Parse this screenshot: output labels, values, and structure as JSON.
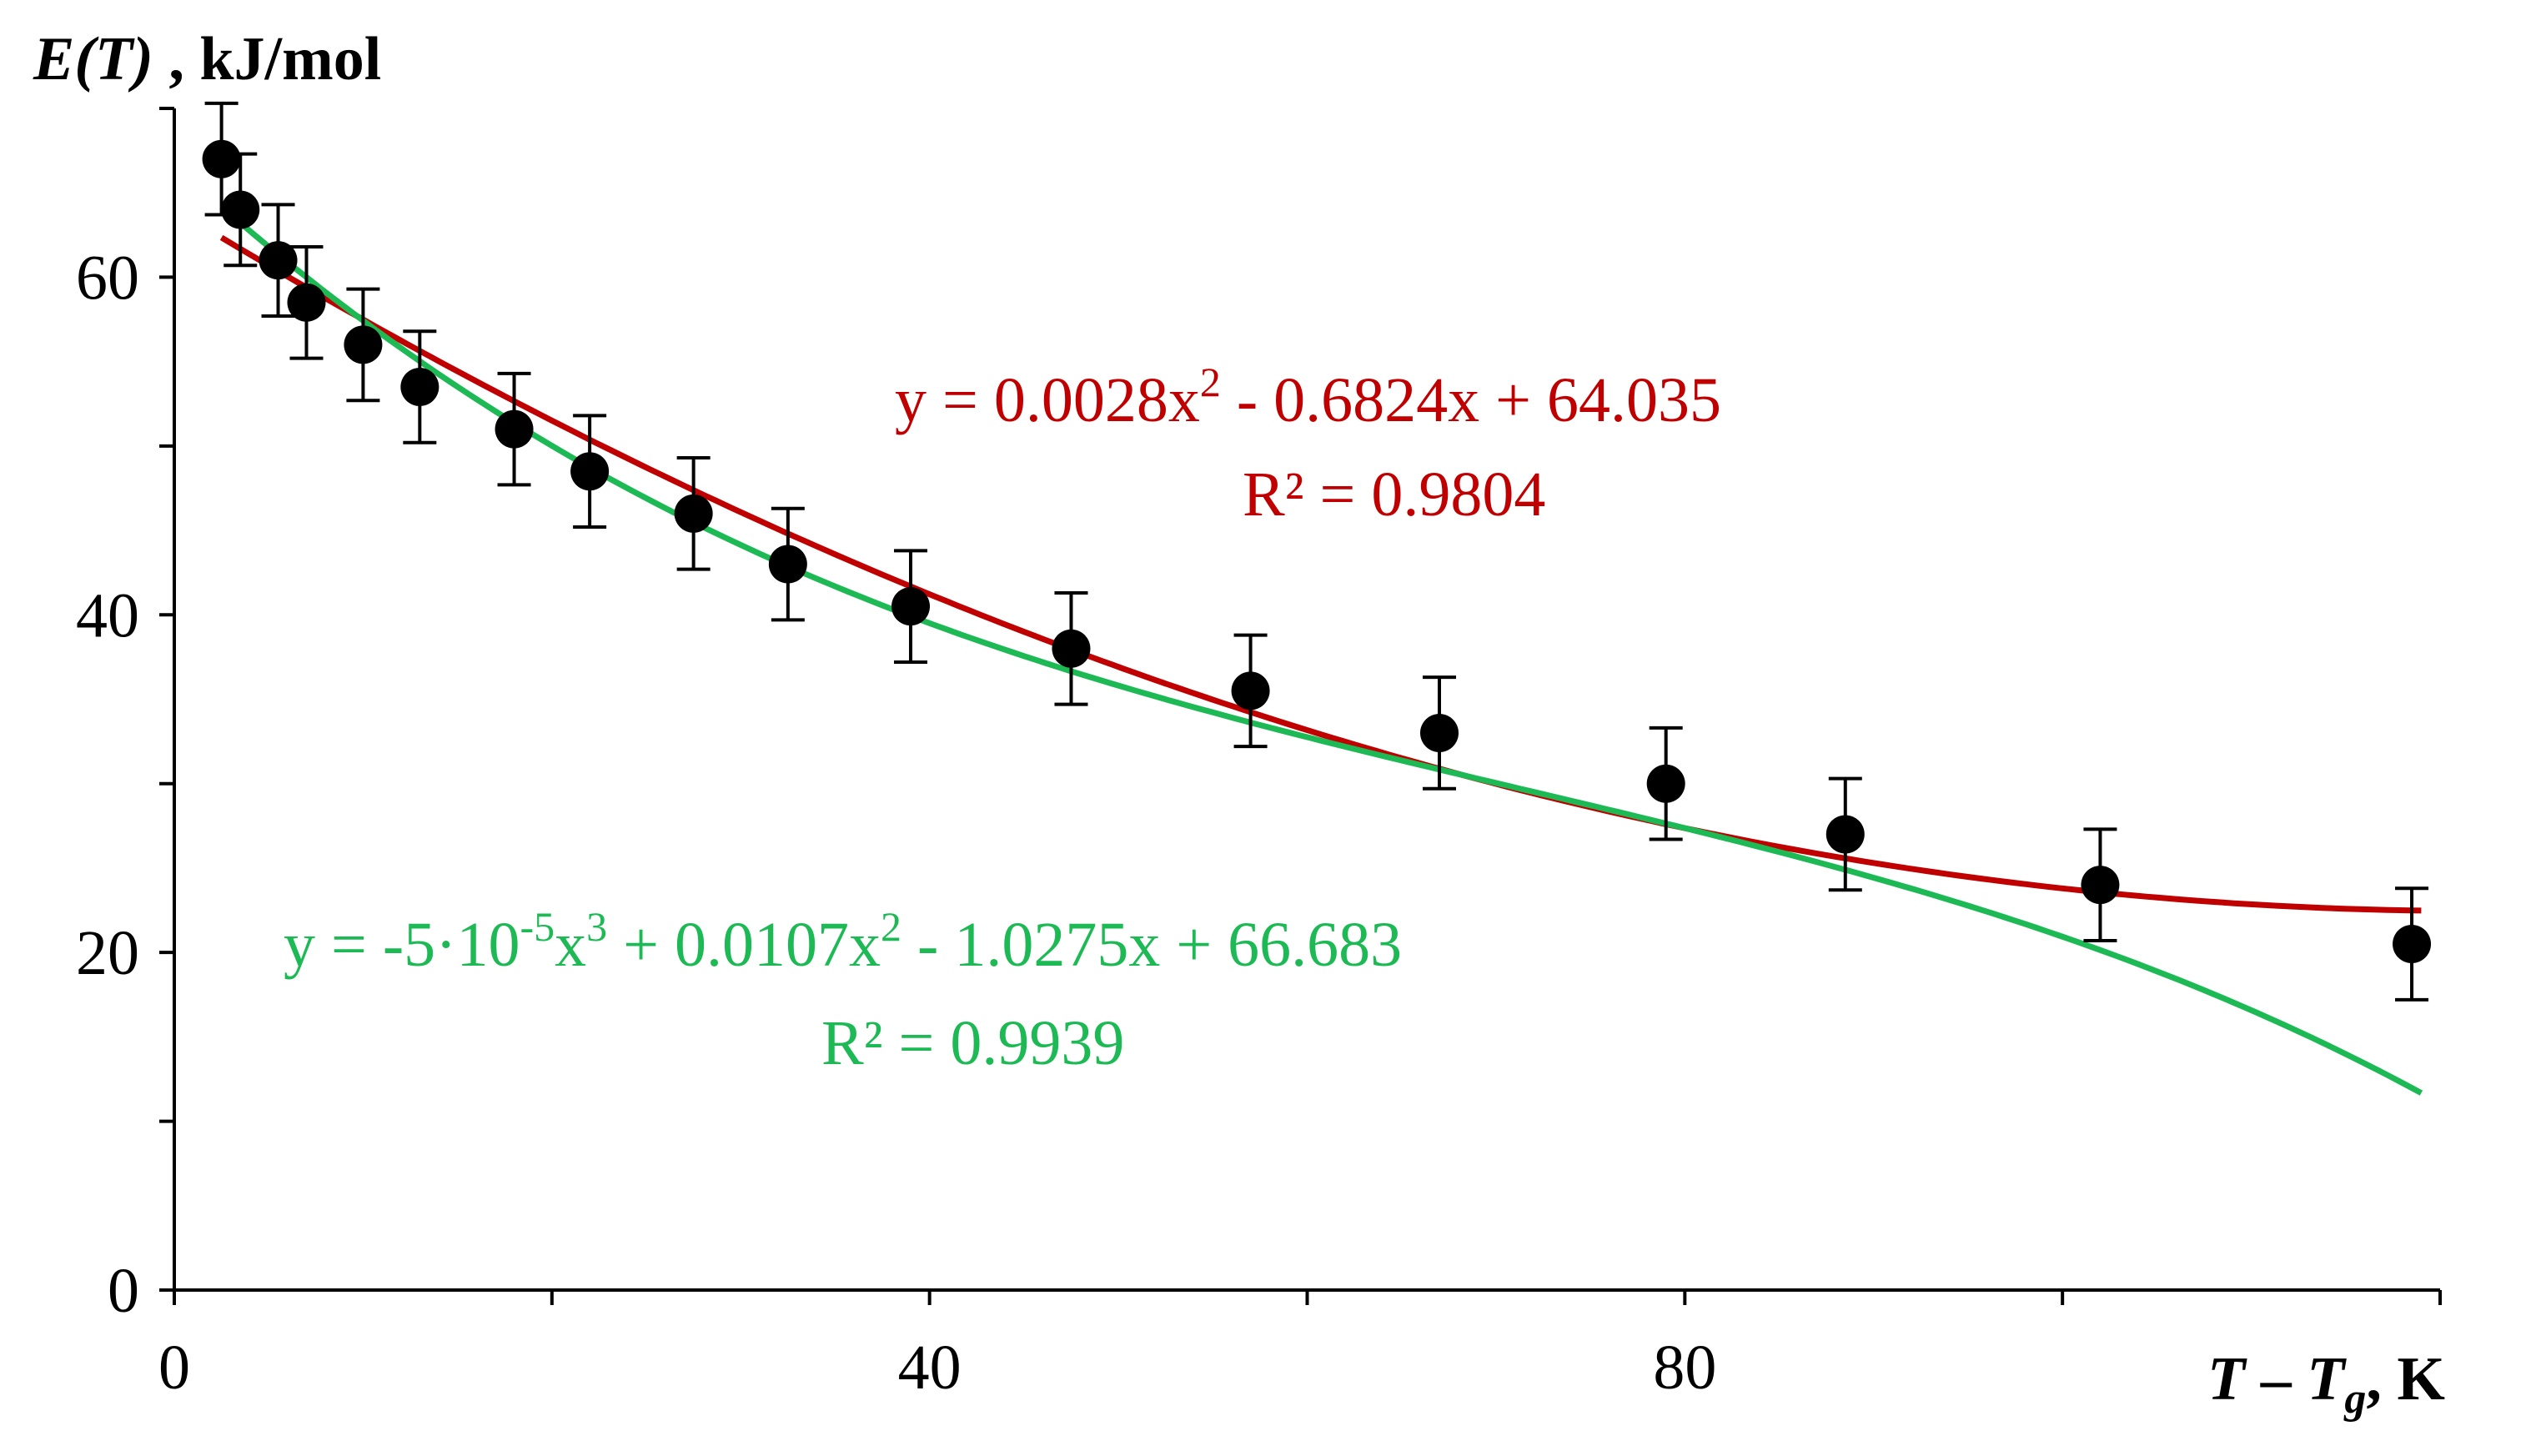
{
  "chart_data": {
    "type": "scatter",
    "title": "",
    "ylabel": {
      "main": "E(T)",
      "unit": " , kJ/mol"
    },
    "xlabel": {
      "T": "T",
      "dash": " – ",
      "Tg": "T",
      "sub": "g",
      "unit": ", K"
    },
    "xlim": [
      0,
      120
    ],
    "ylim": [
      0,
      70
    ],
    "x_ticks": [
      0,
      40,
      80
    ],
    "y_ticks": [
      0,
      20,
      40,
      60
    ],
    "x_minor_ticks": [
      20,
      60,
      100,
      120
    ],
    "y_minor_ticks": [
      10,
      30,
      50,
      70
    ],
    "series": [
      {
        "name": "data",
        "x": [
          2.5,
          3.5,
          5.5,
          7,
          10,
          13,
          18,
          22,
          27.5,
          32.5,
          39,
          47.5,
          57,
          67,
          79,
          88.5,
          102,
          118.5
        ],
        "y": [
          67,
          64,
          61,
          58.5,
          56,
          53.5,
          51,
          48.5,
          46,
          43,
          40.5,
          38,
          35.5,
          33,
          30,
          27,
          24,
          20.5
        ],
        "err": 3.3
      }
    ],
    "fits": [
      {
        "name": "quadratic",
        "color": "#c00000",
        "coef": [
          0.0028,
          -0.6824,
          64.035
        ],
        "x_range": [
          2.5,
          119
        ],
        "equation": {
          "pre": "y = 0.0028x",
          "sup": "2",
          "post": " - 0.6824x + 64.035"
        },
        "r2": "R² = 0.9804"
      },
      {
        "name": "cubic",
        "color": "#1db954",
        "coef": [
          -5e-05,
          0.0107,
          -1.0275,
          66.683
        ],
        "x_range": [
          2.5,
          119
        ],
        "equation": {
          "p1": "y = -5·10",
          "s1": "-5",
          "p2": "x",
          "s2": "3",
          "p3": " + 0.0107x",
          "s3": "2",
          "p4": " - 1.0275x + 66.683"
        },
        "r2": "R² = 0.9939"
      }
    ]
  }
}
